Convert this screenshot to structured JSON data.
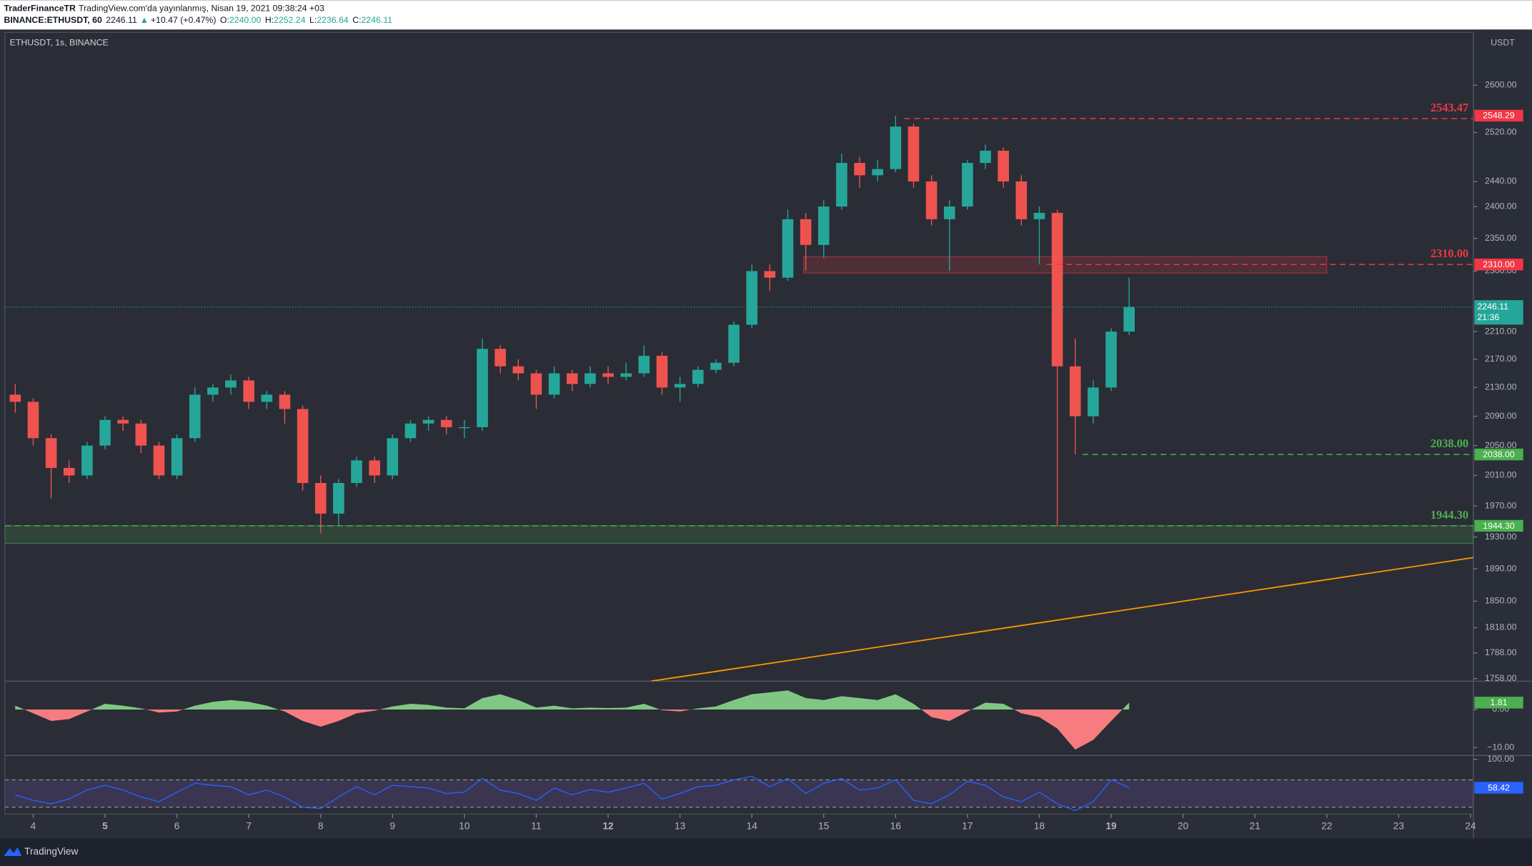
{
  "header": {
    "author": "TraderFinanceTR",
    "published": "TradingView.com'da yayınlanmış, Nisan 19, 2021 09:38:24 +03",
    "symbol": "BINANCE:ETHUSDT, 60",
    "price": "2246.11",
    "arrow": "▲",
    "change": "+10.47 (+0.47%)",
    "ohlc": [
      {
        "key": "O:",
        "value": "2240.00"
      },
      {
        "key": "H:",
        "value": "2252.24"
      },
      {
        "key": "L:",
        "value": "2236.64"
      },
      {
        "key": "C:",
        "value": "2246.11"
      }
    ]
  },
  "chart_data": [
    {
      "type": "candlestick",
      "title": "ETHUSDT, 1s, BINANCE",
      "currency": "USDT",
      "x": [
        3.75,
        4,
        4.25,
        4.5,
        4.75,
        5,
        5.25,
        5.5,
        5.75,
        6,
        6.25,
        6.5,
        6.75,
        7,
        7.25,
        7.5,
        7.75,
        8,
        8.25,
        8.5,
        8.75,
        9,
        9.25,
        9.5,
        9.75,
        10,
        10.25,
        10.5,
        10.75,
        11,
        11.25,
        11.5,
        11.75,
        12,
        12.25,
        12.5,
        12.75,
        13,
        13.25,
        13.5,
        13.75,
        14,
        14.25,
        14.5,
        14.75,
        15,
        15.25,
        15.5,
        15.75,
        16,
        16.25,
        16.5,
        16.75,
        17,
        17.25,
        17.5,
        17.75,
        18,
        18.25,
        18.5,
        18.75,
        19,
        19.25
      ],
      "open": [
        2120,
        2110,
        2060,
        2020,
        2010,
        2050,
        2085,
        2080,
        2050,
        2010,
        2060,
        2120,
        2130,
        2140,
        2110,
        2120,
        2100,
        2000,
        1960,
        2000,
        2030,
        2010,
        2060,
        2080,
        2085,
        2075,
        2075,
        2185,
        2160,
        2150,
        2120,
        2150,
        2135,
        2150,
        2145,
        2150,
        2175,
        2130,
        2135,
        2155,
        2165,
        2220,
        2300,
        2290,
        2380,
        2340,
        2400,
        2470,
        2450,
        2460,
        2530,
        2440,
        2380,
        2400,
        2470,
        2490,
        2440,
        2380,
        2390,
        2160,
        2090,
        2130,
        2210
      ],
      "high": [
        2135,
        2115,
        2065,
        2030,
        2055,
        2090,
        2090,
        2085,
        2055,
        2065,
        2130,
        2135,
        2148,
        2145,
        2125,
        2125,
        2105,
        2010,
        2005,
        2035,
        2035,
        2065,
        2085,
        2090,
        2090,
        2085,
        2200,
        2190,
        2170,
        2155,
        2160,
        2155,
        2160,
        2160,
        2165,
        2190,
        2180,
        2145,
        2160,
        2170,
        2225,
        2310,
        2310,
        2395,
        2390,
        2410,
        2485,
        2480,
        2475,
        2548.29,
        2535,
        2450,
        2410,
        2475,
        2500,
        2495,
        2450,
        2400,
        2395,
        2200,
        2140,
        2215,
        2290
      ],
      "low": [
        2095,
        2050,
        1980,
        2000,
        2005,
        2045,
        2070,
        2040,
        2005,
        2005,
        2055,
        2110,
        2120,
        2100,
        2100,
        2080,
        1990,
        1935,
        1945,
        1995,
        2000,
        2005,
        2055,
        2070,
        2065,
        2060,
        2070,
        2150,
        2140,
        2100,
        2115,
        2125,
        2130,
        2135,
        2140,
        2145,
        2120,
        2110,
        2130,
        2150,
        2160,
        2215,
        2270,
        2285,
        2300,
        2320,
        2395,
        2430,
        2440,
        2455,
        2430,
        2370,
        2300,
        2395,
        2460,
        2430,
        2370,
        2310,
        1944.3,
        2038,
        2080,
        2125,
        2205
      ],
      "close": [
        2110,
        2060,
        2020,
        2010,
        2050,
        2085,
        2080,
        2050,
        2010,
        2060,
        2120,
        2130,
        2140,
        2110,
        2120,
        2100,
        2000,
        1960,
        2000,
        2030,
        2010,
        2060,
        2080,
        2085,
        2075,
        2075,
        2185,
        2160,
        2150,
        2120,
        2150,
        2135,
        2150,
        2145,
        2150,
        2175,
        2130,
        2135,
        2155,
        2165,
        2220,
        2300,
        2290,
        2380,
        2340,
        2400,
        2470,
        2450,
        2460,
        2530,
        2440,
        2380,
        2400,
        2470,
        2490,
        2440,
        2380,
        2390,
        2160,
        2090,
        2130,
        2210,
        2246.11
      ],
      "up_color": "#26a69a",
      "down_color": "#ef5350",
      "xlim": [
        3.606,
        24.04
      ],
      "xticks": [
        4,
        5,
        6,
        7,
        8,
        9,
        10,
        11,
        12,
        13,
        14,
        15,
        16,
        17,
        18,
        19,
        20,
        21,
        22,
        23,
        24
      ],
      "week_start_ticks": [
        1,
        8,
        15
      ],
      "ylim": [
        1755,
        2692
      ],
      "log_scale": true,
      "yticks": [
        {
          "value": 1758,
          "label": "1758.00"
        },
        {
          "value": 1788,
          "label": "1788.00"
        },
        {
          "value": 1818,
          "label": "1818.00"
        },
        {
          "value": 1850,
          "label": "1850.00"
        },
        {
          "value": 1890,
          "label": "1890.00"
        },
        {
          "value": 1930,
          "label": "1930.00"
        },
        {
          "value": 1970,
          "label": "1970.00"
        },
        {
          "value": 2010,
          "label": "2010.00"
        },
        {
          "value": 2050,
          "label": "2050.00"
        },
        {
          "value": 2090,
          "label": "2090.00"
        },
        {
          "value": 2130,
          "label": "2130.00"
        },
        {
          "value": 2170,
          "label": "2170.00"
        },
        {
          "value": 2210,
          "label": "2210.00"
        },
        {
          "value": 2300,
          "label": "2300.00"
        },
        {
          "value": 2350,
          "label": "2350.00"
        },
        {
          "value": 2400,
          "label": "2400.00"
        },
        {
          "value": 2440,
          "label": "2440.00"
        },
        {
          "value": 2520,
          "label": "2520.00"
        },
        {
          "value": 2600,
          "label": "2600.00"
        }
      ],
      "levels": [
        {
          "value": 2543.47,
          "label": "2543.47",
          "tag": {
            "value": 2548.29,
            "label": "2548.29"
          },
          "color": "#f23645",
          "from": 16.12
        },
        {
          "value": 2310,
          "label": "2310.00",
          "tag": {
            "value": 2310,
            "label": "2310.00"
          },
          "color": "#f23645",
          "from": 18.1
        },
        {
          "value": 2038,
          "label": "2038.00",
          "tag": {
            "value": 2038,
            "label": "2038.00"
          },
          "color": "#4caf50",
          "from": 18.6
        },
        {
          "value": 1944.3,
          "label": "1944.30",
          "tag": {
            "value": 1944.3,
            "label": "1944.30"
          },
          "color": "#4caf50",
          "from": 3.606
        }
      ],
      "zones": [
        {
          "low": 2297,
          "high": 2322,
          "from": 14.72,
          "to": 22,
          "color": "#f23645"
        },
        {
          "low": 1922,
          "high": 1944.3,
          "from": 3.606,
          "to": 24.04,
          "color": "#4caf50"
        }
      ],
      "trend_line": {
        "from": [
          12.6,
          1755
        ],
        "to": [
          24.04,
          1904
        ],
        "color": "#ff9800"
      },
      "last_price": {
        "countdown": "21:36",
        "color": "#26a69a"
      }
    },
    {
      "type": "area",
      "values": [
        1,
        -1,
        -3,
        -2.5,
        -0.5,
        1.5,
        1,
        0.3,
        -0.8,
        -0.5,
        1,
        2,
        2.5,
        2,
        1,
        -0.5,
        -3,
        -4.5,
        -3,
        -1,
        -0.3,
        0.8,
        1.5,
        1.2,
        0.5,
        0.3,
        3,
        4,
        2.5,
        0.5,
        1,
        0.3,
        0.5,
        0.4,
        0.5,
        1.5,
        -0.2,
        -0.5,
        0.3,
        0.8,
        2.5,
        4,
        4.5,
        5,
        3,
        2.5,
        3.5,
        3,
        2.5,
        4,
        1.5,
        -2,
        -3,
        -0.5,
        1.8,
        1.5,
        -1,
        -2,
        -5,
        -10.5,
        -8,
        -3,
        1.81
      ],
      "positive_color": "#81c784",
      "negative_color": "#f77c80",
      "ylim": [
        -12.05,
        7.44
      ],
      "yticks": [
        {
          "value": 0,
          "label": "0.00"
        },
        {
          "value": -10,
          "label": "−10.00"
        }
      ]
    },
    {
      "type": "line",
      "values": [
        48,
        40,
        35,
        42,
        55,
        62,
        55,
        45,
        38,
        52,
        65,
        62,
        60,
        48,
        55,
        45,
        30,
        28,
        45,
        60,
        48,
        62,
        60,
        58,
        50,
        52,
        72,
        55,
        50,
        40,
        58,
        48,
        56,
        52,
        58,
        65,
        42,
        50,
        60,
        62,
        70,
        75,
        60,
        72,
        50,
        65,
        72,
        55,
        58,
        70,
        40,
        35,
        48,
        68,
        62,
        45,
        38,
        52,
        35,
        25,
        38,
        70,
        58.42
      ],
      "color": "#2962ff",
      "levels": [
        70,
        30
      ],
      "band_color": "#7e57c2",
      "ylim": [
        20,
        100
      ],
      "yticks": [
        {
          "value": 100,
          "label": "100.00"
        }
      ]
    }
  ],
  "footer": {
    "brand": "TradingView"
  }
}
